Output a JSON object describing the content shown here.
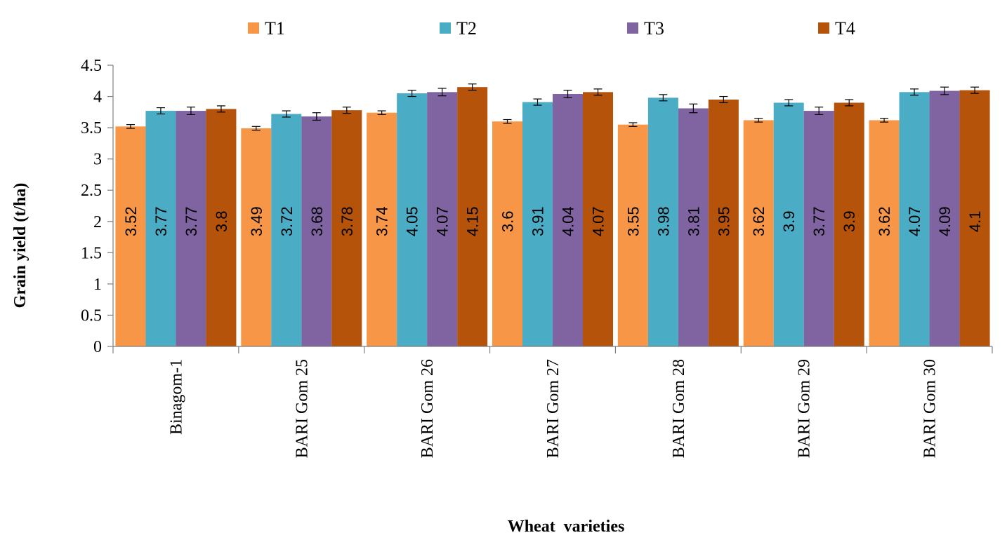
{
  "chart_data": {
    "type": "bar",
    "title": "",
    "xlabel": "Wheat  varieties",
    "ylabel": "Grain yield (t/ha)",
    "ylim": [
      0,
      4.5
    ],
    "yticks": [
      0,
      0.5,
      1,
      1.5,
      2,
      2.5,
      3,
      3.5,
      4,
      4.5
    ],
    "ytick_labels": [
      "0",
      "0.5",
      "1",
      "1.5",
      "2",
      "2.5",
      "3",
      "3.5",
      "4",
      "4.5"
    ],
    "legend_position": "top",
    "grid": false,
    "error_bars": true,
    "categories": [
      "Binagom-1",
      "BARI Gom 25",
      "BARI Gom 26",
      "BARI Gom 27",
      "BARI Gom 28",
      "BARI Gom 29",
      "BARI Gom 30"
    ],
    "series": [
      {
        "name": "T1",
        "color": "#f79646",
        "values": [
          3.52,
          3.49,
          3.74,
          3.6,
          3.55,
          3.62,
          3.62
        ],
        "labels": [
          "3.52",
          "3.49",
          "3.74",
          "3.6",
          "3.55",
          "3.62",
          "3.62"
        ],
        "errors": [
          0.03,
          0.03,
          0.03,
          0.03,
          0.03,
          0.03,
          0.03
        ]
      },
      {
        "name": "T2",
        "color": "#4bacc6",
        "values": [
          3.77,
          3.72,
          4.05,
          3.91,
          3.98,
          3.9,
          4.07
        ],
        "labels": [
          "3.77",
          "3.72",
          "4.05",
          "3.91",
          "3.98",
          "3.9",
          "4.07"
        ],
        "errors": [
          0.05,
          0.05,
          0.05,
          0.05,
          0.05,
          0.05,
          0.05
        ]
      },
      {
        "name": "T3",
        "color": "#8064a2",
        "values": [
          3.77,
          3.68,
          4.07,
          4.04,
          3.81,
          3.77,
          4.09
        ],
        "labels": [
          "3.77",
          "3.68",
          "4.07",
          "4.04",
          "3.81",
          "3.77",
          "4.09"
        ],
        "errors": [
          0.06,
          0.06,
          0.06,
          0.06,
          0.07,
          0.06,
          0.06
        ]
      },
      {
        "name": "T4",
        "color": "#b45309",
        "values": [
          3.8,
          3.78,
          4.15,
          4.07,
          3.95,
          3.9,
          4.1
        ],
        "labels": [
          "3.8",
          "3.78",
          "4.15",
          "4.07",
          "3.95",
          "3.9",
          "4.1"
        ],
        "errors": [
          0.05,
          0.05,
          0.05,
          0.05,
          0.05,
          0.05,
          0.05
        ]
      }
    ]
  }
}
